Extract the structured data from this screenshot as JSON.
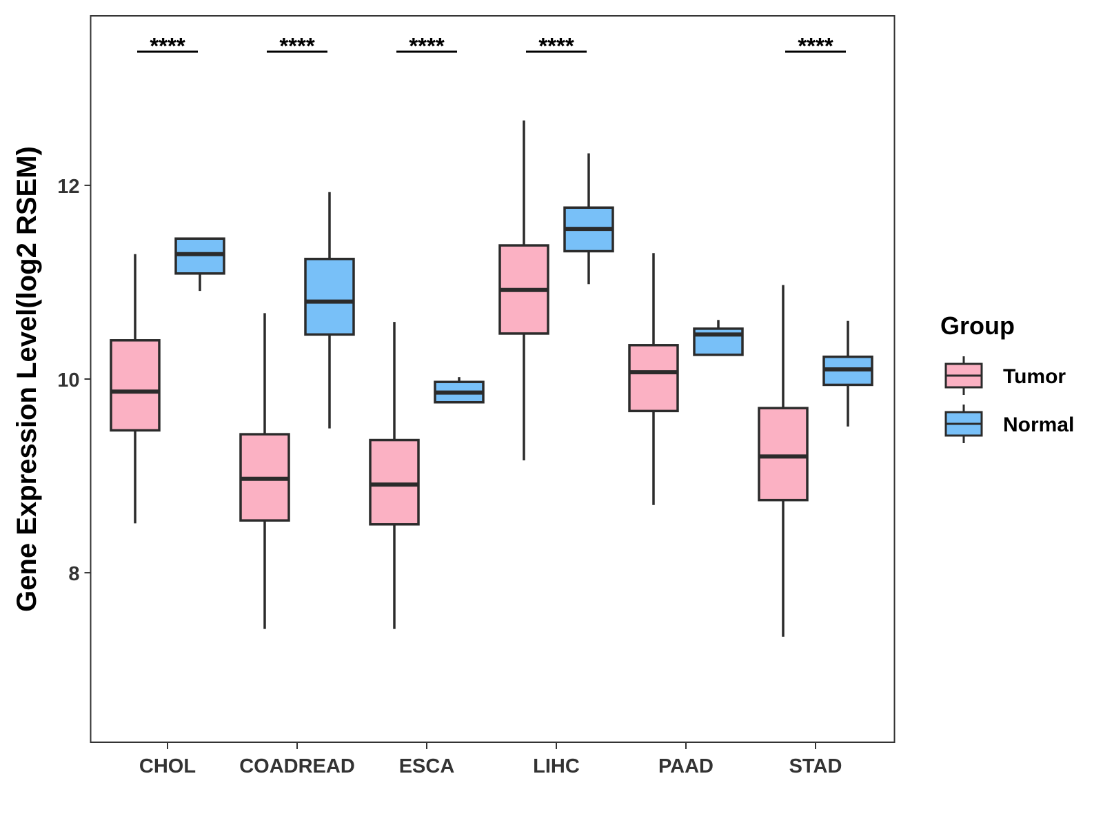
{
  "chart_data": {
    "type": "boxplot",
    "title": "",
    "xlabel": "",
    "ylabel": "Gene Expression Level(log2 RSEM)",
    "categories": [
      "CHOL",
      "COADREAD",
      "ESCA",
      "LIHC",
      "PAAD",
      "STAD"
    ],
    "ylim": [
      6.25,
      13.75
    ],
    "yticks": [
      8,
      10,
      12
    ],
    "grid": false,
    "legend": {
      "title": "Group",
      "position": "right",
      "entries": [
        "Tumor",
        "Normal"
      ]
    },
    "series": [
      {
        "name": "Tumor",
        "color": "#FBB1C3",
        "boxes": [
          {
            "whisker_low": 8.51,
            "q1": 9.47,
            "median": 9.87,
            "q3": 10.4,
            "whisker_high": 11.29
          },
          {
            "whisker_low": 7.42,
            "q1": 8.54,
            "median": 8.97,
            "q3": 9.43,
            "whisker_high": 10.68
          },
          {
            "whisker_low": 7.42,
            "q1": 8.5,
            "median": 8.91,
            "q3": 9.37,
            "whisker_high": 10.59
          },
          {
            "whisker_low": 9.16,
            "q1": 10.47,
            "median": 10.92,
            "q3": 11.38,
            "whisker_high": 12.67
          },
          {
            "whisker_low": 8.7,
            "q1": 9.67,
            "median": 10.07,
            "q3": 10.35,
            "whisker_high": 11.3
          },
          {
            "whisker_low": 7.34,
            "q1": 8.75,
            "median": 9.2,
            "q3": 9.7,
            "whisker_high": 10.97
          }
        ]
      },
      {
        "name": "Normal",
        "color": "#78C0F8",
        "boxes": [
          {
            "whisker_low": 10.91,
            "q1": 11.09,
            "median": 11.29,
            "q3": 11.45,
            "whisker_high": 11.45
          },
          {
            "whisker_low": 9.49,
            "q1": 10.46,
            "median": 10.8,
            "q3": 11.24,
            "whisker_high": 11.93
          },
          {
            "whisker_low": 9.76,
            "q1": 9.76,
            "median": 9.86,
            "q3": 9.97,
            "whisker_high": 10.02
          },
          {
            "whisker_low": 10.98,
            "q1": 11.32,
            "median": 11.55,
            "q3": 11.77,
            "whisker_high": 12.33
          },
          {
            "whisker_low": 10.25,
            "q1": 10.25,
            "median": 10.46,
            "q3": 10.52,
            "whisker_high": 10.61
          },
          {
            "whisker_low": 9.51,
            "q1": 9.94,
            "median": 10.1,
            "q3": 10.23,
            "whisker_high": 10.6
          }
        ]
      }
    ],
    "significance": [
      "****",
      "****",
      "****",
      "****",
      "",
      "****"
    ]
  }
}
